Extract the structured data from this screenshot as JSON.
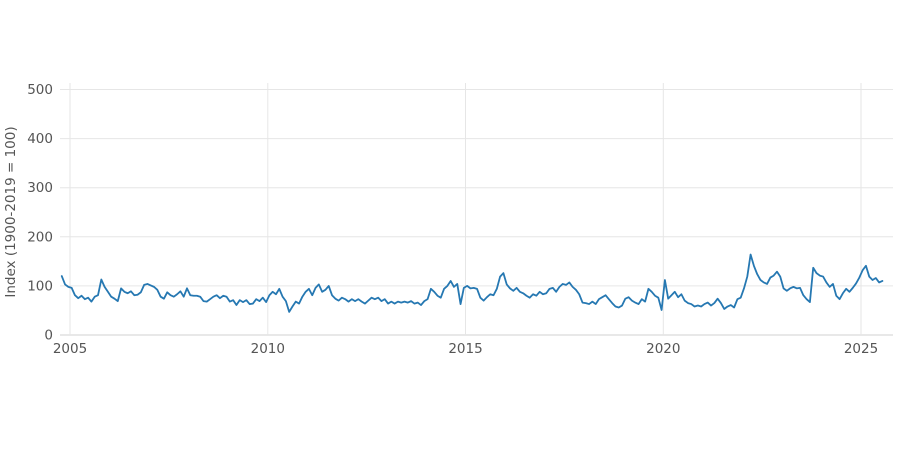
{
  "page": {
    "background": "#ffffff"
  },
  "chart_data": {
    "type": "line",
    "title": "",
    "xlabel": "",
    "ylabel": "Index (1900-2019 = 100)",
    "frequency": "monthly",
    "x_start_year": 2004,
    "x_start_month": 10,
    "x_end_year": 2025,
    "x_end_month": 7,
    "series": [
      {
        "name": "index",
        "values": [
          120,
          103,
          98,
          96,
          81,
          75,
          80,
          73,
          76,
          68,
          78,
          81,
          113,
          98,
          88,
          78,
          74,
          69,
          95,
          88,
          85,
          89,
          81,
          82,
          87,
          102,
          104,
          101,
          98,
          92,
          78,
          74,
          87,
          81,
          78,
          83,
          89,
          78,
          95,
          81,
          80,
          80,
          78,
          69,
          68,
          73,
          78,
          81,
          75,
          80,
          78,
          68,
          71,
          61,
          71,
          67,
          71,
          63,
          64,
          73,
          69,
          76,
          67,
          81,
          88,
          83,
          94,
          78,
          69,
          47,
          58,
          68,
          64,
          78,
          88,
          94,
          81,
          96,
          103,
          88,
          92,
          100,
          81,
          74,
          70,
          76,
          73,
          68,
          73,
          69,
          73,
          68,
          64,
          70,
          76,
          73,
          76,
          69,
          73,
          64,
          68,
          64,
          68,
          66,
          68,
          66,
          69,
          64,
          66,
          61,
          69,
          73,
          94,
          88,
          80,
          76,
          94,
          100,
          110,
          98,
          104,
          63,
          96,
          100,
          95,
          96,
          94,
          76,
          70,
          77,
          83,
          81,
          94,
          119,
          126,
          103,
          95,
          90,
          96,
          88,
          85,
          80,
          76,
          83,
          80,
          88,
          83,
          85,
          94,
          96,
          88,
          98,
          104,
          102,
          107,
          98,
          92,
          83,
          66,
          65,
          63,
          68,
          63,
          73,
          77,
          81,
          73,
          65,
          58,
          56,
          60,
          74,
          77,
          70,
          66,
          63,
          73,
          68,
          94,
          88,
          80,
          76,
          51,
          112,
          74,
          81,
          88,
          77,
          83,
          70,
          65,
          63,
          58,
          60,
          58,
          63,
          66,
          60,
          65,
          74,
          65,
          53,
          58,
          61,
          56,
          73,
          76,
          95,
          119,
          164,
          141,
          124,
          112,
          107,
          104,
          117,
          121,
          129,
          119,
          95,
          90,
          95,
          98,
          95,
          96,
          81,
          73,
          67,
          137,
          126,
          121,
          119,
          107,
          98,
          104,
          80,
          73,
          85,
          94,
          88,
          96,
          105,
          117,
          132,
          141,
          119,
          112,
          116,
          107,
          110
        ]
      }
    ],
    "y_ticks": [
      0,
      100,
      200,
      300,
      400,
      500
    ],
    "y_tick_labels": [
      "0",
      "100",
      "200",
      "300",
      "400",
      "500"
    ],
    "x_ticks": [
      2005,
      2010,
      2015,
      2020,
      2025
    ],
    "x_tick_labels": [
      "2005",
      "2010",
      "2015",
      "2020",
      "2025"
    ],
    "ylim": [
      0,
      500
    ],
    "xlim": [
      2004.75,
      2025.82
    ],
    "grid": true,
    "legend": "none",
    "colors": {
      "line": "#2678b2",
      "grid": "#e6e6e6",
      "axis_line": "#d0d0d0",
      "tick_label": "#555555",
      "axis_title": "#555555"
    }
  }
}
